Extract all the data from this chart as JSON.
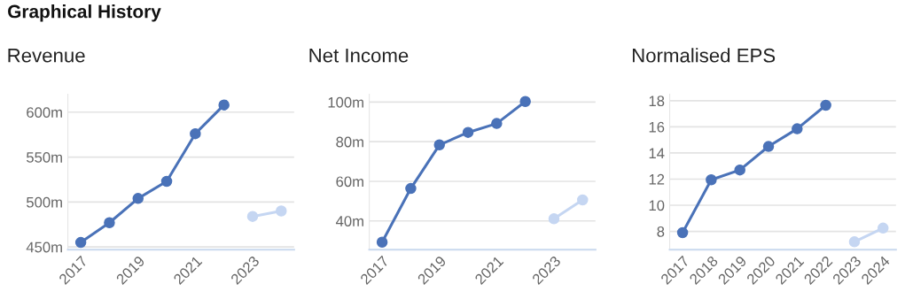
{
  "chart_data": [
    {
      "type": "line",
      "title": "Revenue",
      "annotations": [
        "Graphical History"
      ],
      "categories": [
        "2017",
        null,
        "2019",
        null,
        "2021",
        null,
        "2023",
        null
      ],
      "ylim": [
        447,
        620
      ],
      "yticks": [
        {
          "value": 450,
          "label": "450m"
        },
        {
          "value": 500,
          "label": "500m"
        },
        {
          "value": 550,
          "label": "550m"
        },
        {
          "value": 600,
          "label": "600m"
        }
      ],
      "grid": "y",
      "marker": "circle",
      "line_style": "solid",
      "series": [
        {
          "color": "#4a72b8",
          "values": [
            455,
            477,
            504,
            523,
            576,
            608,
            null,
            null
          ]
        },
        {
          "color": "#c5d6f2",
          "values": [
            null,
            null,
            null,
            null,
            null,
            null,
            484,
            490
          ]
        }
      ]
    },
    {
      "type": "line",
      "title": "Net Income",
      "categories": [
        "2017",
        null,
        "2019",
        null,
        "2021",
        null,
        "2023",
        null
      ],
      "ylim": [
        25.5,
        104
      ],
      "yticks": [
        {
          "value": 40,
          "label": "40m"
        },
        {
          "value": 60,
          "label": "60m"
        },
        {
          "value": 80,
          "label": "80m"
        },
        {
          "value": 100,
          "label": "100m"
        }
      ],
      "grid": "y",
      "marker": "circle",
      "line_style": "solid",
      "series": [
        {
          "color": "#4a72b8",
          "values": [
            29.3,
            56.4,
            78.4,
            84.7,
            89.2,
            100.3,
            null,
            null
          ]
        },
        {
          "color": "#c5d6f2",
          "values": [
            null,
            null,
            null,
            null,
            null,
            null,
            41.1,
            50.6
          ]
        }
      ]
    },
    {
      "type": "line",
      "title": "Normalised EPS",
      "categories": [
        "2017",
        "2018",
        "2019",
        "2020",
        "2021",
        "2022",
        "2023",
        "2024"
      ],
      "ylim": [
        6.6,
        18.5
      ],
      "yticks": [
        8,
        10,
        12,
        14,
        16,
        18
      ],
      "grid": "y",
      "marker": "circle",
      "line_style": "solid",
      "series": [
        {
          "color": "#4a72b8",
          "values": [
            7.9,
            11.95,
            12.7,
            14.5,
            15.85,
            17.65,
            null,
            null
          ]
        },
        {
          "color": "#c5d6f2",
          "values": [
            null,
            null,
            null,
            null,
            null,
            null,
            7.2,
            8.25
          ]
        }
      ]
    }
  ]
}
